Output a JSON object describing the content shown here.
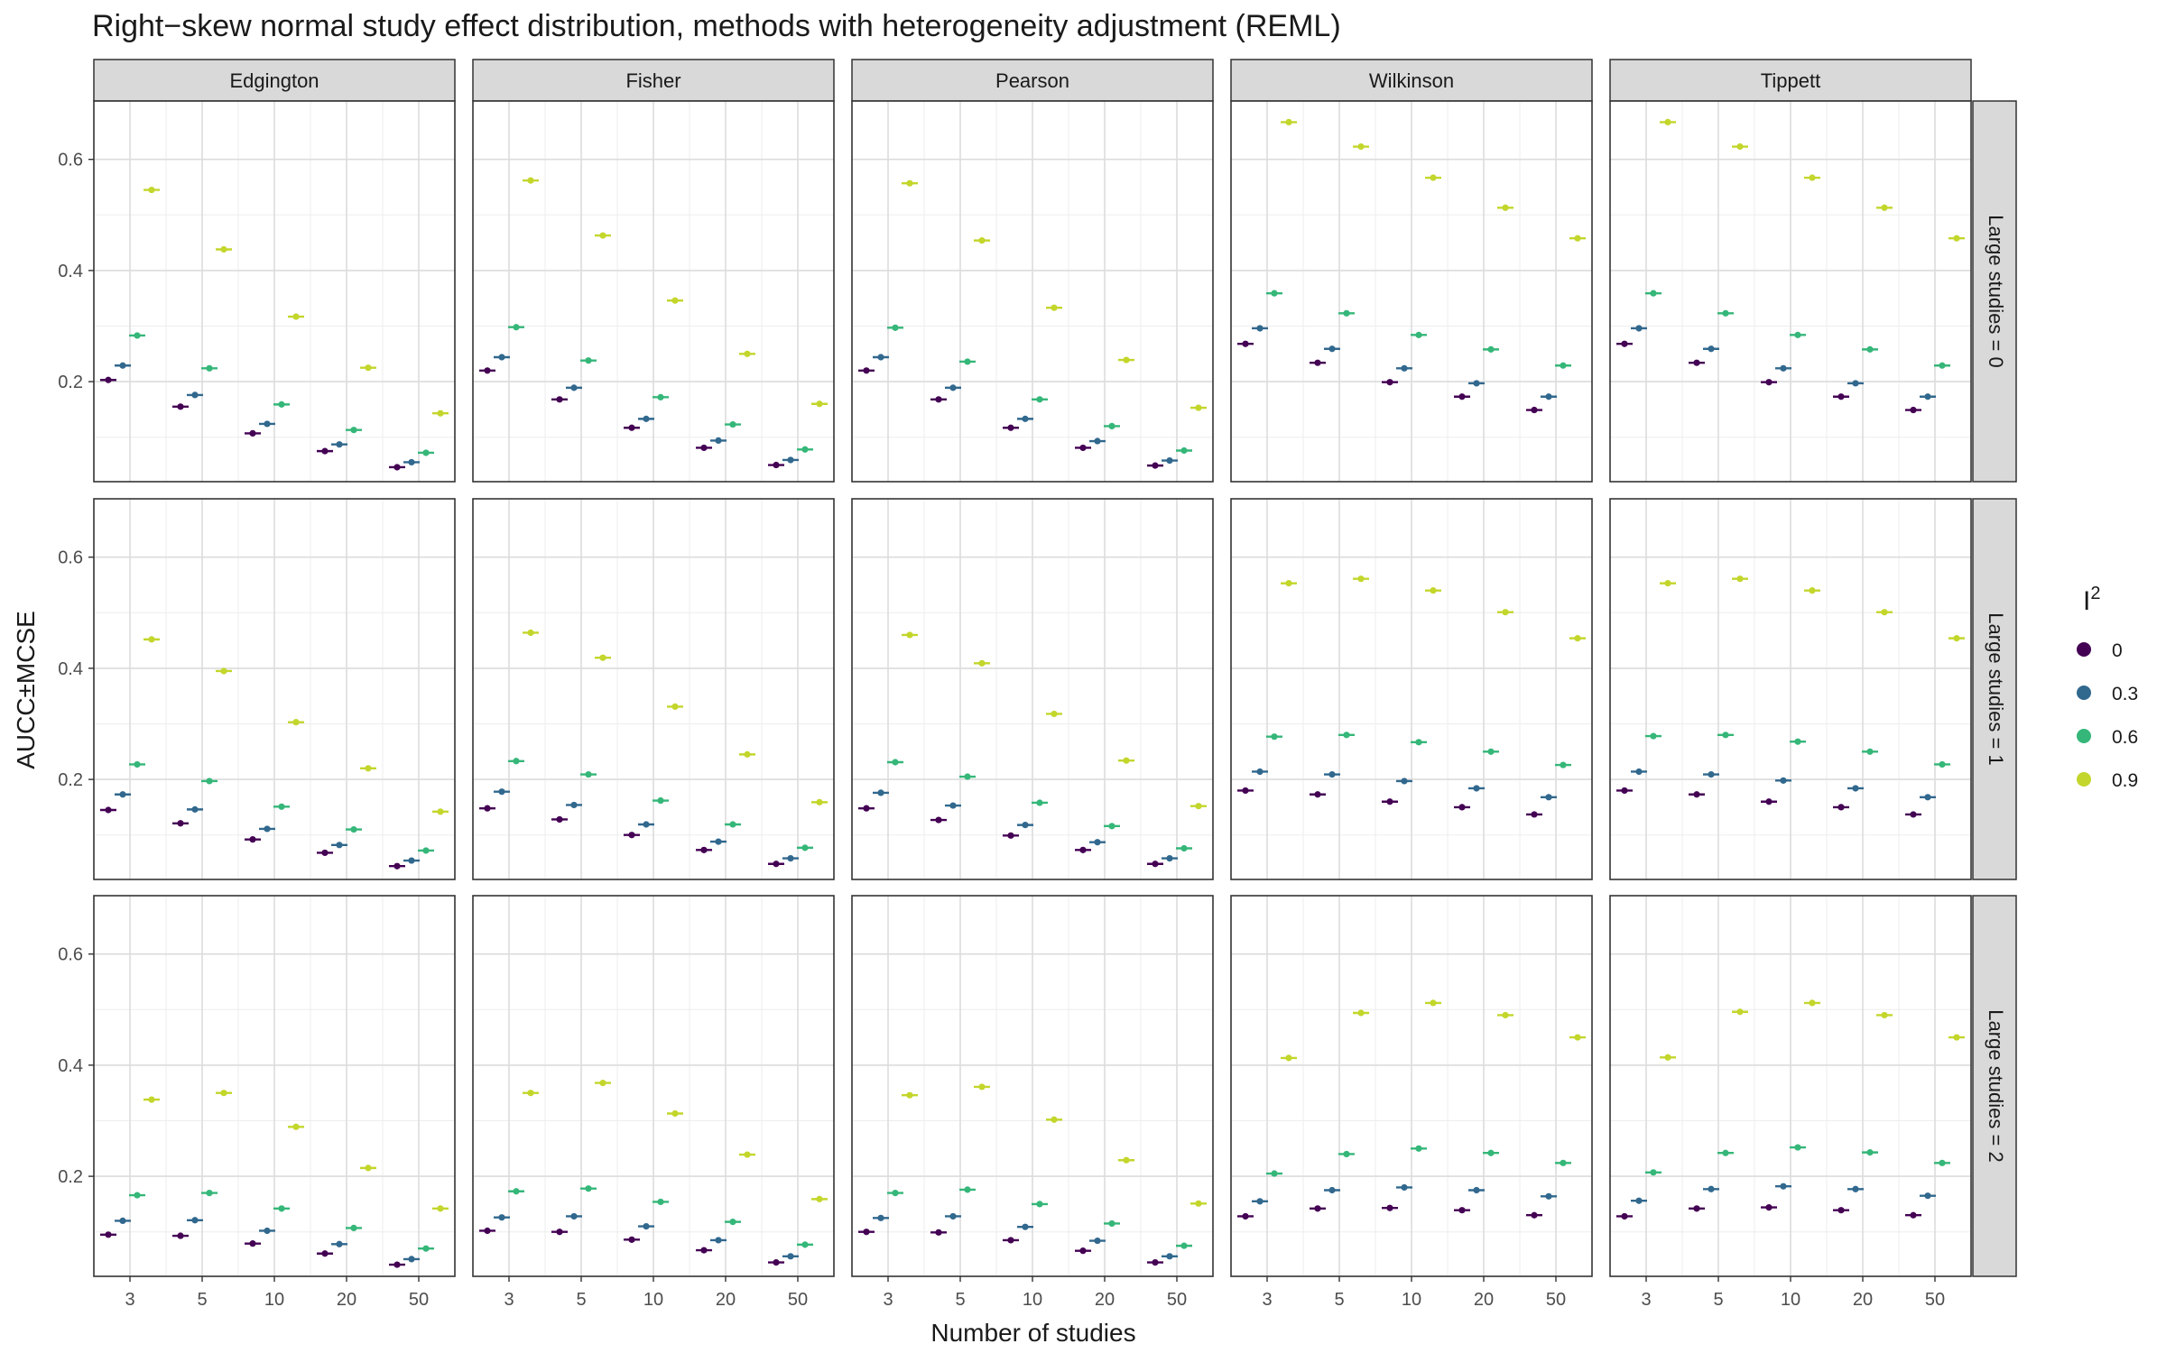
{
  "chart_data": {
    "type": "scatter",
    "title": "Right−skew normal study effect distribution, methods with heterogeneity adjustment (REML)",
    "xlabel": "Number of studies",
    "ylabel": "AUCC±MCSE",
    "x_categories": [
      "3",
      "5",
      "10",
      "20",
      "50"
    ],
    "y_ticks": [
      0.2,
      0.4,
      0.6
    ],
    "y_tick_labels": [
      "0.2",
      "0.4",
      "0.6"
    ],
    "ylim": [
      0.02,
      0.705
    ],
    "grid": true,
    "columns": [
      "Edgington",
      "Fisher",
      "Pearson",
      "Wilkinson",
      "Tippett"
    ],
    "rows": [
      "Large studies = 0",
      "Large studies = 1",
      "Large studies = 2"
    ],
    "legend": {
      "title": "I",
      "title_superscript": "2",
      "position": "right",
      "entries": [
        {
          "label": "0",
          "color": "#440154"
        },
        {
          "label": "0.3",
          "color": "#31688e"
        },
        {
          "label": "0.6",
          "color": "#35b779"
        },
        {
          "label": "0.9",
          "color": "#c3d62b"
        }
      ]
    },
    "panels": [
      [
        [
          [
            0.203,
            0.229,
            0.283,
            0.545
          ],
          [
            0.155,
            0.176,
            0.224,
            0.438
          ],
          [
            0.107,
            0.124,
            0.159,
            0.317
          ],
          [
            0.075,
            0.087,
            0.113,
            0.225
          ],
          [
            0.046,
            0.055,
            0.072,
            0.143
          ]
        ],
        [
          [
            0.22,
            0.244,
            0.298,
            0.562
          ],
          [
            0.168,
            0.189,
            0.238,
            0.463
          ],
          [
            0.117,
            0.133,
            0.172,
            0.346
          ],
          [
            0.081,
            0.094,
            0.123,
            0.25
          ],
          [
            0.05,
            0.059,
            0.078,
            0.16
          ]
        ],
        [
          [
            0.22,
            0.244,
            0.297,
            0.557
          ],
          [
            0.168,
            0.189,
            0.236,
            0.454
          ],
          [
            0.117,
            0.133,
            0.168,
            0.333
          ],
          [
            0.081,
            0.093,
            0.12,
            0.239
          ],
          [
            0.049,
            0.058,
            0.076,
            0.153
          ]
        ],
        [
          [
            0.268,
            0.296,
            0.359,
            0.667
          ],
          [
            0.234,
            0.259,
            0.323,
            0.623
          ],
          [
            0.199,
            0.224,
            0.284,
            0.567
          ],
          [
            0.173,
            0.197,
            0.258,
            0.513
          ],
          [
            0.149,
            0.173,
            0.229,
            0.458
          ]
        ],
        [
          [
            0.268,
            0.296,
            0.359,
            0.667
          ],
          [
            0.234,
            0.259,
            0.323,
            0.623
          ],
          [
            0.199,
            0.224,
            0.284,
            0.567
          ],
          [
            0.173,
            0.197,
            0.258,
            0.513
          ],
          [
            0.149,
            0.173,
            0.229,
            0.458
          ]
        ]
      ],
      [
        [
          [
            0.145,
            0.173,
            0.227,
            0.452
          ],
          [
            0.121,
            0.146,
            0.197,
            0.395
          ],
          [
            0.092,
            0.111,
            0.151,
            0.303
          ],
          [
            0.068,
            0.082,
            0.11,
            0.22
          ],
          [
            0.044,
            0.054,
            0.072,
            0.142
          ]
        ],
        [
          [
            0.148,
            0.178,
            0.233,
            0.464
          ],
          [
            0.128,
            0.154,
            0.209,
            0.419
          ],
          [
            0.1,
            0.119,
            0.162,
            0.331
          ],
          [
            0.073,
            0.088,
            0.119,
            0.245
          ],
          [
            0.048,
            0.058,
            0.077,
            0.159
          ]
        ],
        [
          [
            0.148,
            0.176,
            0.231,
            0.46
          ],
          [
            0.127,
            0.153,
            0.205,
            0.409
          ],
          [
            0.099,
            0.118,
            0.158,
            0.318
          ],
          [
            0.073,
            0.087,
            0.116,
            0.234
          ],
          [
            0.048,
            0.058,
            0.076,
            0.152
          ]
        ],
        [
          [
            0.18,
            0.214,
            0.277,
            0.553
          ],
          [
            0.173,
            0.209,
            0.28,
            0.561
          ],
          [
            0.16,
            0.197,
            0.267,
            0.54
          ],
          [
            0.15,
            0.184,
            0.25,
            0.501
          ],
          [
            0.137,
            0.168,
            0.226,
            0.454
          ]
        ],
        [
          [
            0.18,
            0.214,
            0.278,
            0.553
          ],
          [
            0.173,
            0.209,
            0.28,
            0.561
          ],
          [
            0.16,
            0.198,
            0.268,
            0.54
          ],
          [
            0.15,
            0.184,
            0.25,
            0.501
          ],
          [
            0.137,
            0.168,
            0.227,
            0.454
          ]
        ]
      ],
      [
        [
          [
            0.095,
            0.12,
            0.166,
            0.338
          ],
          [
            0.093,
            0.121,
            0.17,
            0.35
          ],
          [
            0.079,
            0.102,
            0.142,
            0.289
          ],
          [
            0.061,
            0.078,
            0.107,
            0.215
          ],
          [
            0.041,
            0.051,
            0.07,
            0.142
          ]
        ],
        [
          [
            0.102,
            0.126,
            0.173,
            0.35
          ],
          [
            0.1,
            0.128,
            0.178,
            0.368
          ],
          [
            0.086,
            0.11,
            0.154,
            0.313
          ],
          [
            0.067,
            0.085,
            0.118,
            0.239
          ],
          [
            0.045,
            0.056,
            0.077,
            0.159
          ]
        ],
        [
          [
            0.1,
            0.125,
            0.17,
            0.346
          ],
          [
            0.099,
            0.128,
            0.176,
            0.361
          ],
          [
            0.085,
            0.109,
            0.15,
            0.302
          ],
          [
            0.066,
            0.084,
            0.115,
            0.229
          ],
          [
            0.045,
            0.056,
            0.075,
            0.151
          ]
        ],
        [
          [
            0.128,
            0.155,
            0.205,
            0.413
          ],
          [
            0.142,
            0.175,
            0.24,
            0.494
          ],
          [
            0.143,
            0.18,
            0.25,
            0.512
          ],
          [
            0.139,
            0.175,
            0.242,
            0.49
          ],
          [
            0.13,
            0.164,
            0.224,
            0.45
          ]
        ],
        [
          [
            0.128,
            0.156,
            0.207,
            0.414
          ],
          [
            0.142,
            0.177,
            0.242,
            0.496
          ],
          [
            0.144,
            0.182,
            0.252,
            0.512
          ],
          [
            0.139,
            0.177,
            0.243,
            0.49
          ],
          [
            0.13,
            0.165,
            0.224,
            0.45
          ]
        ]
      ]
    ]
  }
}
